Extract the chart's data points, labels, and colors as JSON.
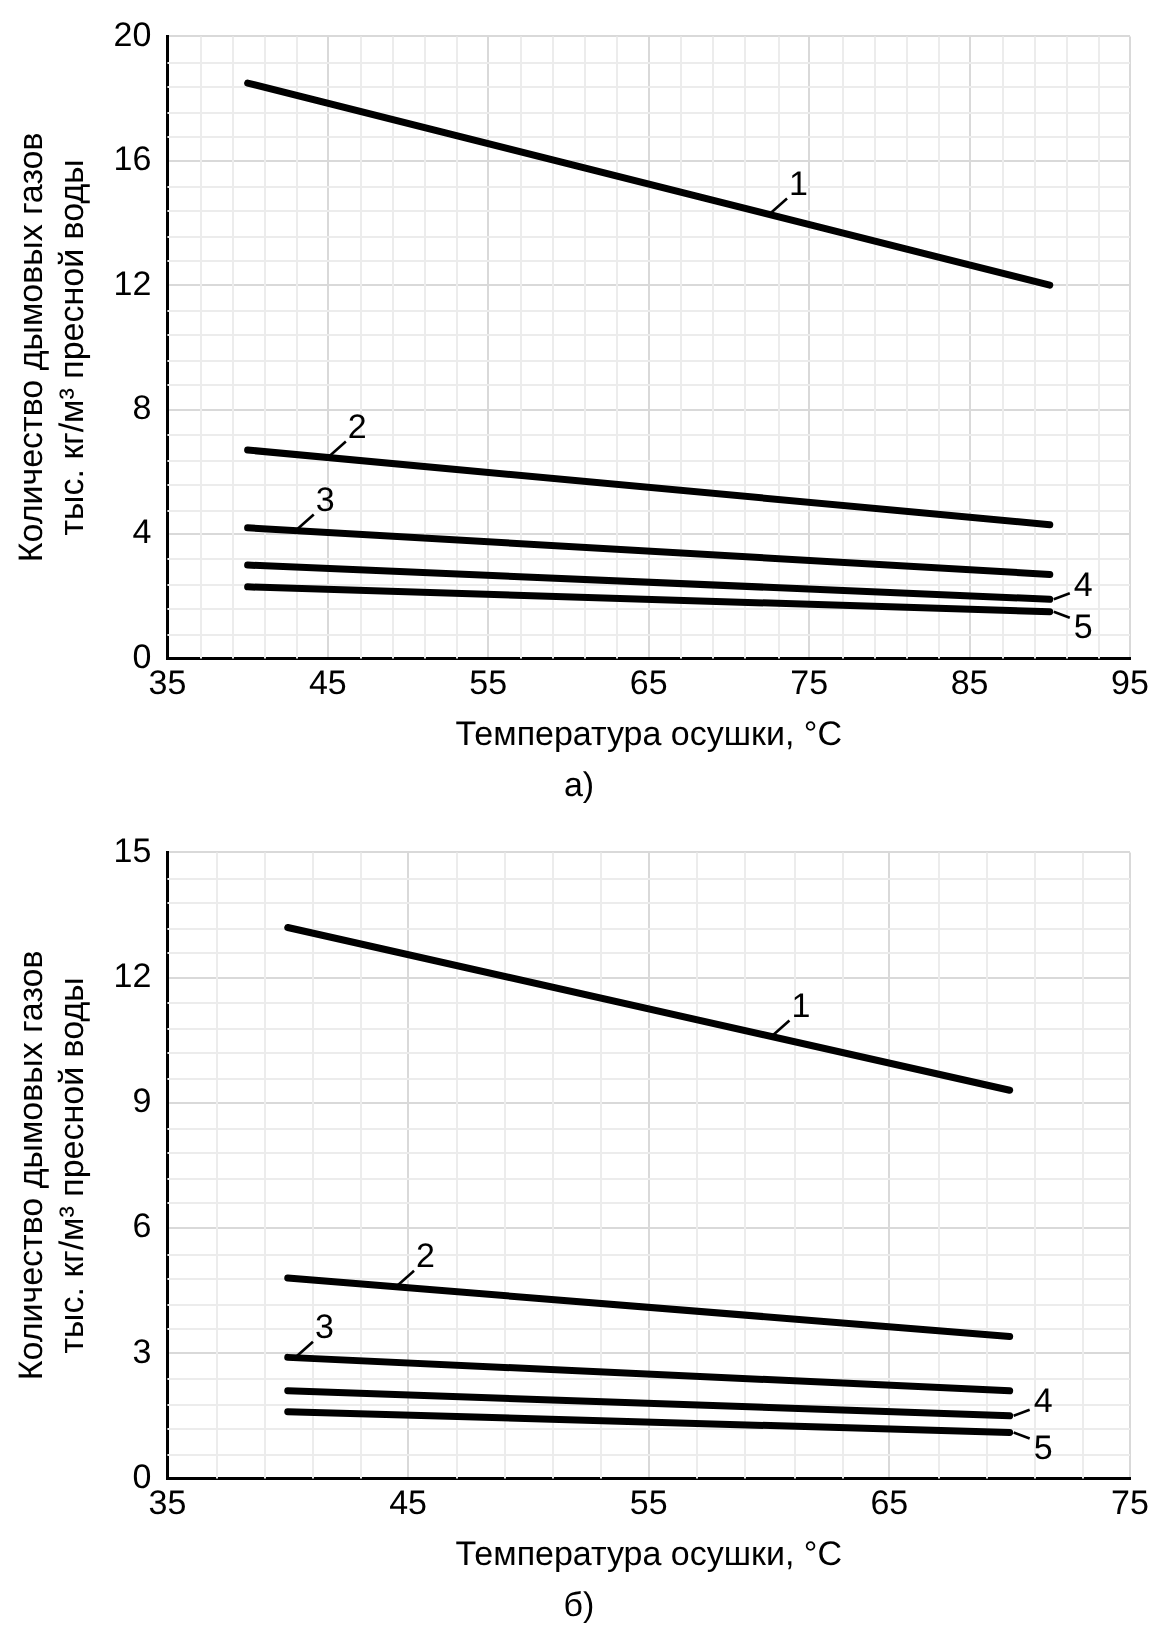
{
  "chart_data": [
    {
      "type": "line",
      "xlabel": "Температура осушки, °C",
      "ylabel": "Количество дымовых газов\nтыс. кг/м³ пресной воды",
      "annotations": [
        "а)"
      ],
      "xlim": [
        35,
        95
      ],
      "xticks": [
        35,
        45,
        55,
        65,
        75,
        85,
        95
      ],
      "ylim": [
        0,
        20
      ],
      "yticks": [
        0,
        4,
        8,
        12,
        16,
        20
      ],
      "grid": true,
      "legend": "right",
      "marker": "none",
      "line_style": "solid",
      "x": [
        40,
        90
      ],
      "series": [
        {
          "name": "1",
          "color": "#000000",
          "values": [
            18.5,
            12.0
          ]
        },
        {
          "name": "2",
          "color": "#000000",
          "values": [
            6.7,
            4.3
          ]
        },
        {
          "name": "3",
          "color": "#000000",
          "values": [
            4.2,
            2.7
          ]
        },
        {
          "name": "4",
          "color": "#000000",
          "values": [
            3.0,
            1.9
          ]
        },
        {
          "name": "5",
          "color": "#000000",
          "values": [
            2.3,
            1.5
          ]
        }
      ]
    },
    {
      "type": "line",
      "xlabel": "Температура осушки, °C",
      "ylabel": "Количество дымовых газов\nтыс. кг/м³ пресной воды",
      "annotations": [
        "б)"
      ],
      "xlim": [
        35,
        75
      ],
      "xticks": [
        35,
        45,
        55,
        65,
        75
      ],
      "ylim": [
        0,
        15
      ],
      "yticks": [
        0,
        3,
        6,
        9,
        12,
        15
      ],
      "grid": true,
      "legend": "right",
      "marker": "none",
      "line_style": "solid",
      "x": [
        40,
        70
      ],
      "series": [
        {
          "name": "1",
          "color": "#000000",
          "values": [
            13.2,
            9.3
          ]
        },
        {
          "name": "2",
          "color": "#000000",
          "values": [
            4.8,
            3.4
          ]
        },
        {
          "name": "3",
          "color": "#000000",
          "values": [
            2.9,
            2.1
          ]
        },
        {
          "name": "4",
          "color": "#000000",
          "values": [
            2.1,
            1.5
          ]
        },
        {
          "name": "5",
          "color": "#000000",
          "values": [
            1.6,
            1.1
          ]
        }
      ]
    }
  ]
}
